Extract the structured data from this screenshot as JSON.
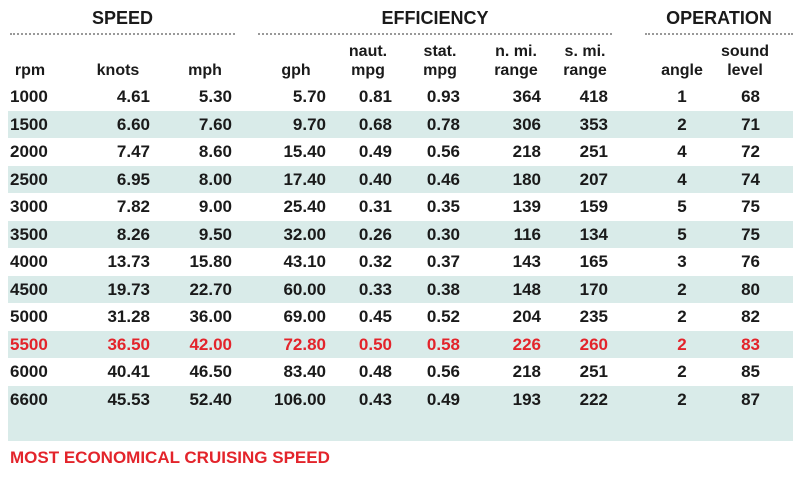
{
  "table": {
    "groups": [
      "SPEED",
      "EFFICIENCY",
      "OPERATION"
    ],
    "columns": [
      [
        "rpm"
      ],
      [
        "knots"
      ],
      [
        "mph"
      ],
      [
        "gph"
      ],
      [
        "naut.",
        "mpg"
      ],
      [
        "stat.",
        "mpg"
      ],
      [
        "n. mi.",
        "range"
      ],
      [
        "s. mi.",
        "range"
      ],
      [
        "angle"
      ],
      [
        "sound",
        "level"
      ]
    ],
    "rows": [
      [
        "1000",
        "4.61",
        "5.30",
        "5.70",
        "0.81",
        "0.93",
        "364",
        "418",
        "1",
        "68"
      ],
      [
        "1500",
        "6.60",
        "7.60",
        "9.70",
        "0.68",
        "0.78",
        "306",
        "353",
        "2",
        "71"
      ],
      [
        "2000",
        "7.47",
        "8.60",
        "15.40",
        "0.49",
        "0.56",
        "218",
        "251",
        "4",
        "72"
      ],
      [
        "2500",
        "6.95",
        "8.00",
        "17.40",
        "0.40",
        "0.46",
        "180",
        "207",
        "4",
        "74"
      ],
      [
        "3000",
        "7.82",
        "9.00",
        "25.40",
        "0.31",
        "0.35",
        "139",
        "159",
        "5",
        "75"
      ],
      [
        "3500",
        "8.26",
        "9.50",
        "32.00",
        "0.26",
        "0.30",
        "116",
        "134",
        "5",
        "75"
      ],
      [
        "4000",
        "13.73",
        "15.80",
        "43.10",
        "0.32",
        "0.37",
        "143",
        "165",
        "3",
        "76"
      ],
      [
        "4500",
        "19.73",
        "22.70",
        "60.00",
        "0.33",
        "0.38",
        "148",
        "170",
        "2",
        "80"
      ],
      [
        "5000",
        "31.28",
        "36.00",
        "69.00",
        "0.45",
        "0.52",
        "204",
        "235",
        "2",
        "82"
      ],
      [
        "5500",
        "36.50",
        "42.00",
        "72.80",
        "0.50",
        "0.58",
        "226",
        "260",
        "2",
        "83"
      ],
      [
        "6000",
        "40.41",
        "46.50",
        "83.40",
        "0.48",
        "0.56",
        "218",
        "251",
        "2",
        "85"
      ],
      [
        "6600",
        "45.53",
        "52.40",
        "106.00",
        "0.43",
        "0.49",
        "193",
        "222",
        "2",
        "87"
      ]
    ],
    "highlight": {
      "row": 9,
      "color": "#e3242b"
    },
    "footnote": "MOST ECONOMICAL CRUISING SPEED"
  }
}
